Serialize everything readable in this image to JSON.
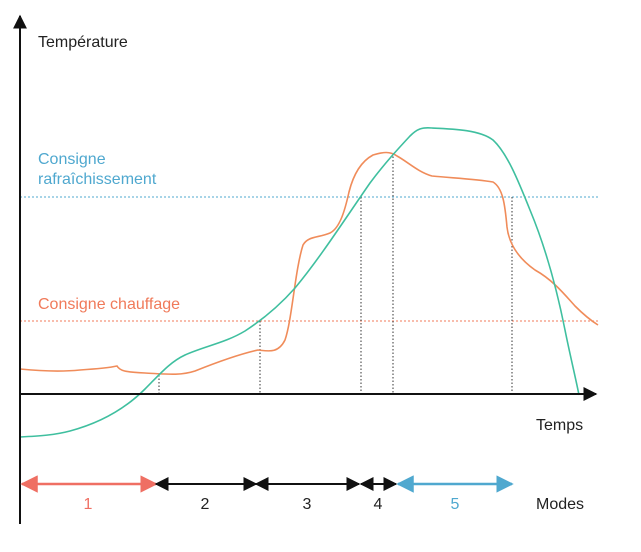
{
  "diagram": {
    "y_axis_label": "Température",
    "x_axis_label": "Temps",
    "cooling_setpoint_label_line1": "Consigne",
    "cooling_setpoint_label_line2": "rafraîchissement",
    "heating_setpoint_label": "Consigne chauffage",
    "modes_label": "Modes",
    "modes": [
      {
        "label": "1"
      },
      {
        "label": "2"
      },
      {
        "label": "3"
      },
      {
        "label": "4"
      },
      {
        "label": "5"
      }
    ]
  },
  "colors": {
    "axis": "#111111",
    "outdoor_curve": "#3fbf9f",
    "indoor_curve": "#f08c5a",
    "cooling_setpoint": "#4fa8cf",
    "heating_setpoint": "#f07a5a",
    "mode1": "#ef6f63",
    "mode5": "#4fa8cf",
    "neutral_mode": "#111111"
  }
}
